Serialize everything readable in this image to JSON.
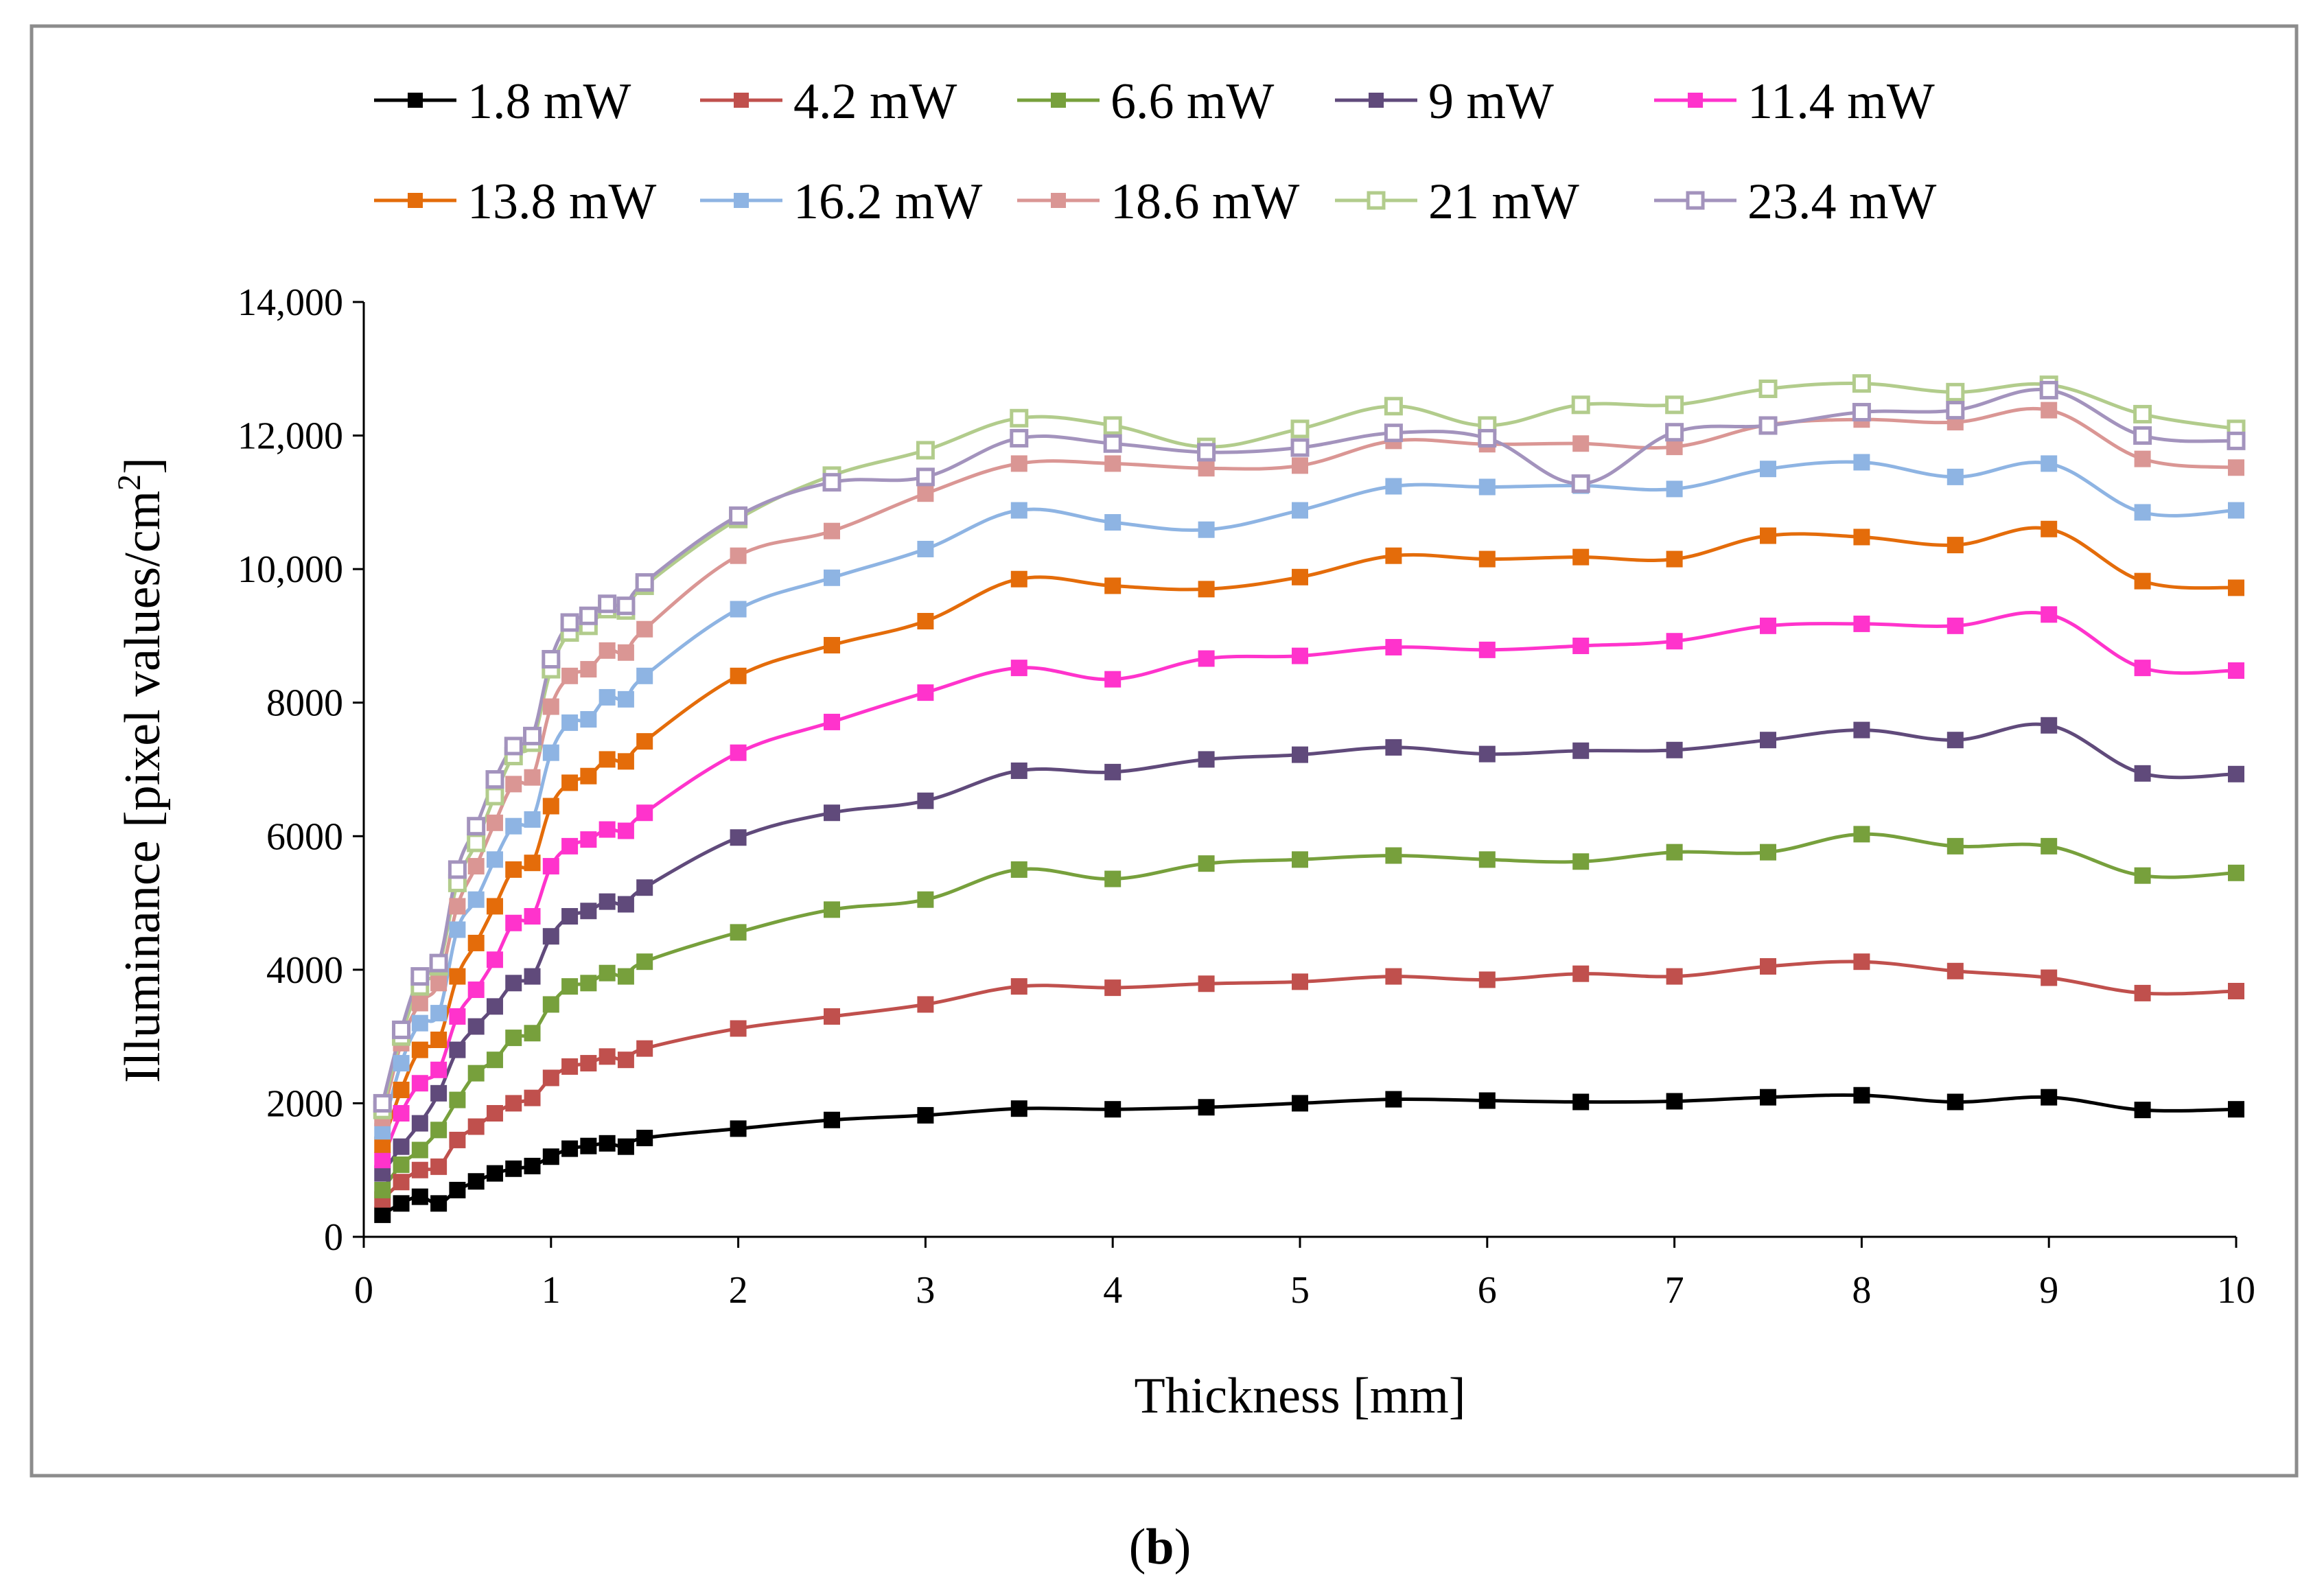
{
  "caption": {
    "open": "(",
    "letter": "b",
    "close": ")"
  },
  "chart_data": {
    "type": "line",
    "title": "",
    "xlabel": "Thickness [mm]",
    "ylabel": {
      "main": "Illuminance [pixel values/cm",
      "sup": "2",
      "close": "]"
    },
    "xlim": [
      0,
      10
    ],
    "ylim": [
      0,
      14000
    ],
    "xticks": [
      0,
      1,
      2,
      3,
      4,
      5,
      6,
      7,
      8,
      9,
      10
    ],
    "xtick_labels": [
      "0",
      "1",
      "2",
      "3",
      "4",
      "5",
      "6",
      "7",
      "8",
      "9",
      "10"
    ],
    "yticks": [
      0,
      2000,
      4000,
      6000,
      8000,
      10000,
      12000,
      14000
    ],
    "ytick_labels": [
      "0",
      "2000",
      "4000",
      "6000",
      "8000",
      "10,000",
      "12,000",
      "14,000"
    ],
    "grid": false,
    "legend_position": "top",
    "x": [
      0.1,
      0.2,
      0.3,
      0.4,
      0.5,
      0.6,
      0.7,
      0.8,
      0.9,
      1.0,
      1.1,
      1.2,
      1.3,
      1.4,
      1.5,
      2,
      2.5,
      3,
      3.5,
      4,
      4.5,
      5,
      5.5,
      6,
      6.5,
      7,
      7.5,
      8,
      8.5,
      9,
      9.5,
      10
    ],
    "series": [
      {
        "name": "1.8 mW",
        "color": "#000000",
        "marker": "filled",
        "values": [
          330,
          500,
          600,
          500,
          700,
          830,
          950,
          1020,
          1060,
          1200,
          1320,
          1360,
          1400,
          1350,
          1480,
          1620,
          1750,
          1820,
          1920,
          1910,
          1940,
          2000,
          2060,
          2040,
          2020,
          2030,
          2090,
          2120,
          2020,
          2090,
          1900,
          1910
        ]
      },
      {
        "name": "4.2 mW",
        "color": "#c0504d",
        "marker": "filled",
        "values": [
          560,
          820,
          1000,
          1050,
          1450,
          1650,
          1850,
          2000,
          2080,
          2380,
          2550,
          2600,
          2700,
          2650,
          2820,
          3120,
          3300,
          3480,
          3750,
          3730,
          3790,
          3820,
          3900,
          3850,
          3940,
          3900,
          4050,
          4120,
          3980,
          3880,
          3650,
          3680
        ]
      },
      {
        "name": "6.6 mW",
        "color": "#77a03c",
        "marker": "filled",
        "values": [
          700,
          1080,
          1300,
          1600,
          2050,
          2450,
          2650,
          2980,
          3050,
          3480,
          3750,
          3800,
          3950,
          3900,
          4120,
          4560,
          4900,
          5050,
          5500,
          5360,
          5590,
          5650,
          5710,
          5650,
          5620,
          5760,
          5760,
          6030,
          5850,
          5850,
          5410,
          5450
        ]
      },
      {
        "name": "9 mW",
        "color": "#604a7b",
        "marker": "filled",
        "values": [
          950,
          1350,
          1700,
          2150,
          2800,
          3150,
          3450,
          3800,
          3900,
          4500,
          4800,
          4880,
          5020,
          4980,
          5230,
          5980,
          6350,
          6530,
          6980,
          6960,
          7150,
          7220,
          7330,
          7230,
          7280,
          7290,
          7440,
          7590,
          7440,
          7660,
          6940,
          6930
        ]
      },
      {
        "name": "11.4 mW",
        "color": "#ff33cc",
        "marker": "filled",
        "values": [
          1150,
          1850,
          2300,
          2500,
          3300,
          3700,
          4150,
          4700,
          4800,
          5550,
          5850,
          5950,
          6100,
          6080,
          6350,
          7250,
          7710,
          8150,
          8520,
          8350,
          8660,
          8700,
          8830,
          8790,
          8850,
          8920,
          9150,
          9180,
          9150,
          9320,
          8520,
          8480
        ]
      },
      {
        "name": "13.8 mW",
        "color": "#e46c0a",
        "marker": "filled",
        "values": [
          1380,
          2200,
          2800,
          2950,
          3900,
          4400,
          4950,
          5500,
          5600,
          6450,
          6800,
          6900,
          7150,
          7120,
          7420,
          8400,
          8860,
          9220,
          9850,
          9750,
          9700,
          9880,
          10200,
          10150,
          10180,
          10150,
          10500,
          10480,
          10360,
          10600,
          9820,
          9720
        ]
      },
      {
        "name": "16.2 mW",
        "color": "#8eb4e3",
        "marker": "filled",
        "values": [
          1580,
          2600,
          3200,
          3350,
          4600,
          5050,
          5650,
          6150,
          6250,
          7250,
          7700,
          7750,
          8080,
          8050,
          8400,
          9400,
          9870,
          10300,
          10880,
          10700,
          10590,
          10880,
          11240,
          11230,
          11250,
          11200,
          11500,
          11600,
          11380,
          11580,
          10850,
          10880
        ]
      },
      {
        "name": "18.6 mW",
        "color": "#da9694",
        "marker": "filled",
        "values": [
          1780,
          2900,
          3500,
          3800,
          4950,
          5550,
          6200,
          6780,
          6880,
          7940,
          8400,
          8500,
          8780,
          8750,
          9100,
          10200,
          10570,
          11130,
          11580,
          11580,
          11510,
          11550,
          11920,
          11870,
          11880,
          11830,
          12160,
          12240,
          12200,
          12380,
          11650,
          11520
        ]
      },
      {
        "name": "21 mW",
        "color": "#b2cc8c",
        "marker": "hollow",
        "values": [
          1900,
          3000,
          3750,
          4050,
          5300,
          5900,
          6600,
          7200,
          7400,
          8500,
          9050,
          9150,
          9400,
          9380,
          9750,
          10750,
          11400,
          11780,
          12260,
          12150,
          11830,
          12100,
          12440,
          12150,
          12460,
          12460,
          12700,
          12780,
          12650,
          12760,
          12320,
          12100
        ]
      },
      {
        "name": "23.4 mW",
        "color": "#a393bd",
        "marker": "hollow",
        "values": [
          2000,
          3100,
          3900,
          4100,
          5500,
          6150,
          6850,
          7350,
          7500,
          8650,
          9200,
          9300,
          9480,
          9450,
          9800,
          10800,
          11300,
          11380,
          11960,
          11880,
          11750,
          11820,
          12040,
          11960,
          11280,
          12050,
          12150,
          12350,
          12380,
          12680,
          12000,
          11920
        ]
      }
    ]
  }
}
